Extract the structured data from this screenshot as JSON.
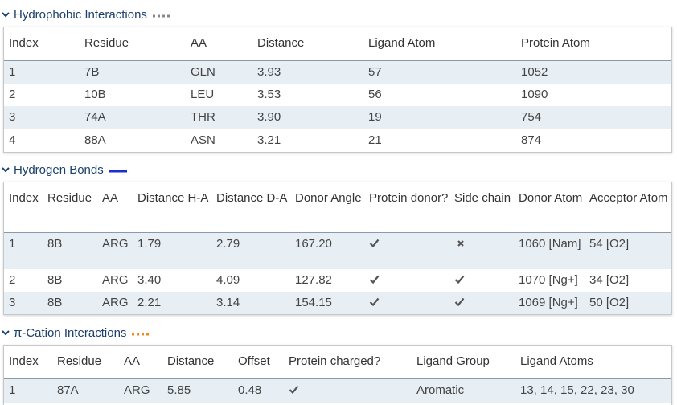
{
  "hydrophobic": {
    "title": "Hydrophobic Interactions",
    "line_color": "#888888",
    "columns": [
      "Index",
      "Residue",
      "AA",
      "Distance",
      "Ligand Atom",
      "Protein Atom"
    ],
    "rows": [
      [
        "1",
        "7B",
        "GLN",
        "3.93",
        "57",
        "1052"
      ],
      [
        "2",
        "10B",
        "LEU",
        "3.53",
        "56",
        "1090"
      ],
      [
        "3",
        "74A",
        "THR",
        "3.90",
        "19",
        "754"
      ],
      [
        "4",
        "88A",
        "ASN",
        "3.21",
        "21",
        "874"
      ]
    ]
  },
  "hbonds": {
    "title": "Hydrogen Bonds",
    "line_color": "#1a2fd1",
    "columns": [
      "Index",
      "Residue",
      "AA",
      "Distance H-A",
      "Distance D-A",
      "Donor Angle",
      "Protein donor?",
      "Side chain",
      "Donor Atom",
      "Acceptor Atom"
    ],
    "rows": [
      [
        "1",
        "8B",
        "ARG",
        "1.79",
        "2.79",
        "167.20",
        "check",
        "cross",
        "1060 [Nam]",
        "54 [O2]"
      ],
      [
        "2",
        "8B",
        "ARG",
        "3.40",
        "4.09",
        "127.82",
        "check",
        "check",
        "1070 [Ng+]",
        "34 [O2]"
      ],
      [
        "3",
        "8B",
        "ARG",
        "2.21",
        "3.14",
        "154.15",
        "check",
        "check",
        "1069 [Ng+]",
        "50 [O2]"
      ]
    ]
  },
  "pication": {
    "title": "π-Cation Interactions",
    "line_color": "#f08a1c",
    "columns": [
      "Index",
      "Residue",
      "AA",
      "Distance",
      "Offset",
      "Protein charged?",
      "Ligand Group",
      "Ligand Atoms"
    ],
    "rows": [
      [
        "1",
        "87A",
        "ARG",
        "5.85",
        "0.48",
        "check",
        "Aromatic",
        "13, 14, 15, 22, 23, 30"
      ]
    ]
  }
}
